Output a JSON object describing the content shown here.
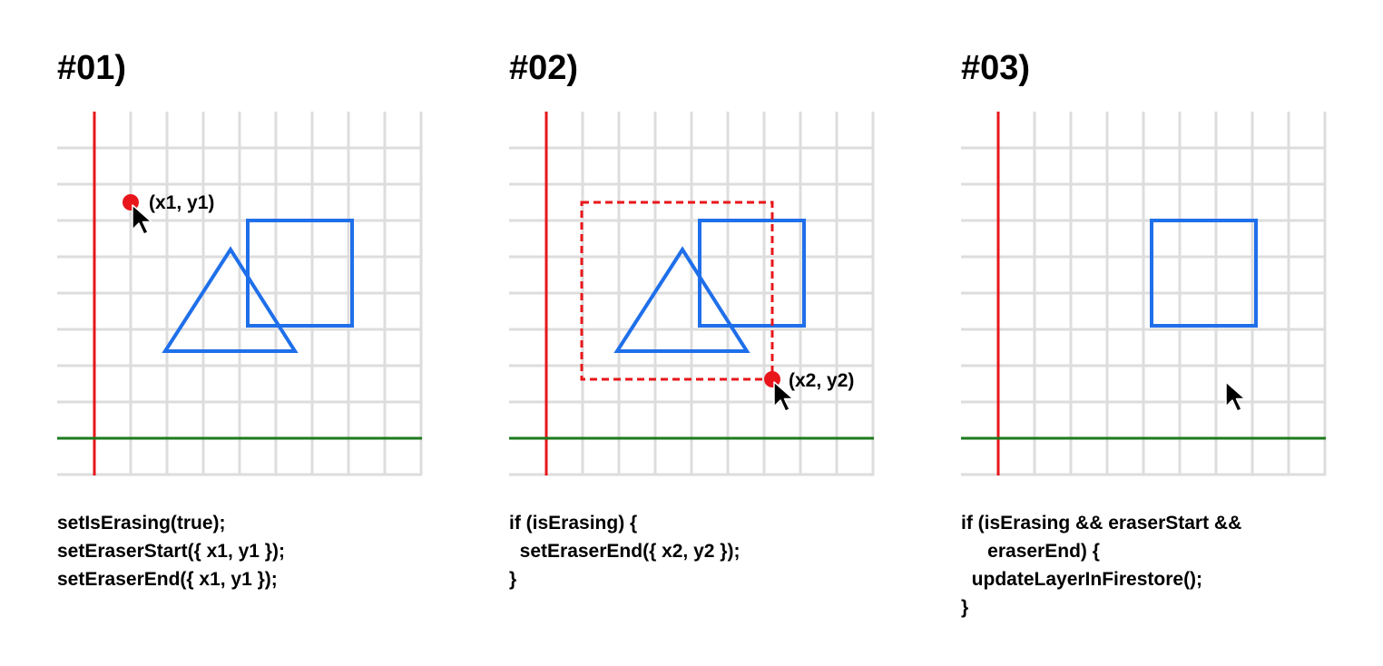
{
  "colors": {
    "grid": "#dddddd",
    "y_axis": "#e8161b",
    "x_axis": "#1c7a1c",
    "shape": "#1f6fea",
    "eraser": "#e8161b",
    "cursor": "#000000"
  },
  "panels": [
    {
      "title": "#01)",
      "points": [
        {
          "label": "(x1, y1)"
        }
      ],
      "code": [
        "setIsErasing(true);",
        "setEraserStart({ x1, y1 });",
        "setEraserEnd({ x1, y1 });"
      ]
    },
    {
      "title": "#02)",
      "points": [
        {
          "label": "(x2, y2)"
        }
      ],
      "code": [
        "if (isErasing) {",
        "  setEraserEnd({ x2, y2 });",
        "}"
      ]
    },
    {
      "title": "#03)",
      "points": [],
      "code": [
        "if (isErasing && eraserStart &&",
        "     eraserEnd) {",
        "  updateLayerInFirestore();",
        "}"
      ]
    }
  ]
}
